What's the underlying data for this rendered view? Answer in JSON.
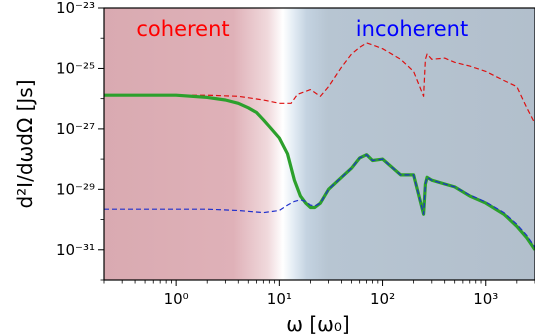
{
  "chart_data": {
    "type": "line",
    "xlabel": "ω [ω₀]",
    "ylabel": "d²I/dωdΩ [Js]",
    "xscale": "log",
    "yscale": "log",
    "xlim": [
      0.2,
      3000
    ],
    "ylim": [
      1e-32,
      1e-23
    ],
    "grid": false,
    "x_ticks": [
      {
        "value": 1,
        "label": "10⁰"
      },
      {
        "value": 10,
        "label": "10¹"
      },
      {
        "value": 100,
        "label": "10²"
      },
      {
        "value": 1000,
        "label": "10³"
      }
    ],
    "y_ticks": [
      {
        "value": 1e-23,
        "label": "10⁻²³"
      },
      {
        "value": 1e-25,
        "label": "10⁻²⁵"
      },
      {
        "value": 1e-27,
        "label": "10⁻²⁷"
      },
      {
        "value": 1e-29,
        "label": "10⁻²⁹"
      },
      {
        "value": 1e-31,
        "label": "10⁻³¹"
      }
    ],
    "regions": [
      {
        "label": "coherent",
        "color": "#ff0000",
        "background": "#d9aab0"
      },
      {
        "label": "incoherent",
        "color": "#0000ff",
        "background": "#b4c2d0"
      }
    ],
    "series": [
      {
        "color": "#dd1111",
        "style": "dashed",
        "x": [
          0.2,
          0.5,
          1,
          2,
          4,
          7,
          10,
          13,
          15,
          20,
          25,
          30,
          40,
          50,
          60,
          70,
          80,
          100,
          150,
          200,
          250,
          260,
          270,
          300,
          400,
          500,
          700,
          1000,
          1500,
          2000,
          2500,
          3000
        ],
        "y": [
          1.3e-26,
          1.3e-26,
          1.3e-26,
          1.3e-26,
          1.2e-26,
          9e-27,
          7e-27,
          7e-27,
          1.4e-26,
          2e-26,
          1.2e-26,
          2.5e-26,
          1.1e-25,
          3e-25,
          5e-25,
          7e-25,
          6e-25,
          4.5e-25,
          2e-25,
          8e-26,
          1.2e-26,
          2e-25,
          3e-25,
          2e-25,
          2.2e-25,
          1.6e-25,
          1.2e-25,
          8e-26,
          4e-26,
          2.5e-26,
          5e-27,
          1.5e-27
        ]
      },
      {
        "color": "#2ca02c",
        "style": "solid-thick",
        "x": [
          0.2,
          0.5,
          1,
          2,
          3,
          4,
          5,
          6,
          7,
          8,
          10,
          12,
          14,
          16,
          18,
          20,
          22,
          25,
          30,
          40,
          50,
          60,
          70,
          80,
          100,
          150,
          200,
          250,
          260,
          270,
          300,
          400,
          500,
          700,
          1000,
          1500,
          2000,
          2500,
          3000
        ],
        "y": [
          1.3e-26,
          1.3e-26,
          1.3e-26,
          1.1e-26,
          9e-27,
          7e-27,
          5e-27,
          3.5e-27,
          2e-27,
          1.2e-27,
          5e-28,
          1.5e-28,
          2e-29,
          6e-30,
          3.5e-30,
          2.5e-30,
          2.5e-30,
          3.5e-30,
          1e-29,
          2.5e-29,
          5e-29,
          1.1e-28,
          1.4e-28,
          9e-29,
          1e-28,
          3e-29,
          3e-29,
          1.5e-30,
          1.5e-29,
          2.5e-29,
          2e-29,
          1.5e-29,
          1.2e-29,
          6e-30,
          3.5e-30,
          1.5e-30,
          6e-31,
          2.5e-31,
          1e-31
        ]
      },
      {
        "color": "#1f2fcc",
        "style": "dashed",
        "x": [
          0.2,
          0.5,
          1,
          2,
          4,
          7,
          10,
          12,
          14,
          16,
          18,
          20,
          22,
          25,
          30,
          40,
          50,
          60,
          70,
          80,
          100,
          150,
          200,
          250,
          260,
          270,
          300,
          400,
          500,
          700,
          1000,
          1500,
          2000,
          2500,
          3000
        ],
        "y": [
          2.2e-30,
          2.2e-30,
          2.2e-30,
          2.2e-30,
          2e-30,
          1.7e-30,
          2e-30,
          3e-30,
          4e-30,
          4.5e-30,
          4e-30,
          3e-30,
          2.8e-30,
          3.5e-30,
          1e-29,
          2.5e-29,
          5e-29,
          1.1e-28,
          1.4e-28,
          9e-29,
          1e-28,
          3e-29,
          3e-29,
          1.5e-30,
          1.5e-29,
          2.5e-29,
          2e-29,
          1.5e-29,
          1.2e-29,
          6.5e-30,
          3.8e-30,
          1.7e-30,
          7e-31,
          3e-31,
          1.2e-31
        ]
      }
    ]
  }
}
